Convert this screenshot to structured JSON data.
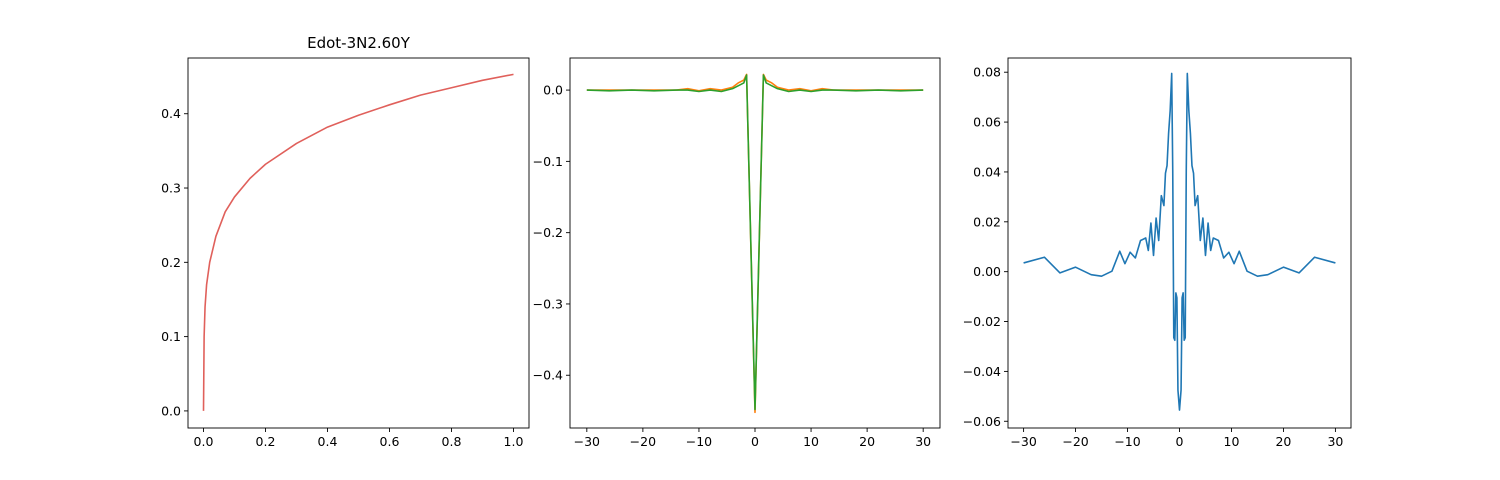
{
  "chart_data": [
    {
      "type": "line",
      "title": "Edot-3N2.60Y",
      "xlabel": "",
      "ylabel": "",
      "xlim": [
        -0.05,
        1.05
      ],
      "ylim": [
        -0.023,
        0.475
      ],
      "xticks": [
        "0.0",
        "0.2",
        "0.4",
        "0.6",
        "0.8",
        "1.0"
      ],
      "yticks": [
        "0.0",
        "0.1",
        "0.2",
        "0.3",
        "0.4"
      ],
      "grid": false,
      "series": [
        {
          "color": "#e0605b",
          "x": [
            0,
            0.002,
            0.005,
            0.01,
            0.02,
            0.04,
            0.07,
            0.1,
            0.15,
            0.2,
            0.3,
            0.4,
            0.5,
            0.6,
            0.7,
            0.8,
            0.9,
            1.0
          ],
          "y": [
            0.0,
            0.1,
            0.14,
            0.17,
            0.2,
            0.235,
            0.268,
            0.288,
            0.313,
            0.332,
            0.36,
            0.382,
            0.398,
            0.412,
            0.425,
            0.435,
            0.445,
            0.453
          ]
        }
      ]
    },
    {
      "type": "line",
      "title": "",
      "xlabel": "",
      "ylabel": "",
      "xlim": [
        -33,
        33
      ],
      "ylim": [
        -0.474,
        0.045
      ],
      "xticks": [
        "−30",
        "−20",
        "−10",
        "0",
        "10",
        "20",
        "30"
      ],
      "yticks": [
        "0.0",
        "−0.1",
        "−0.2",
        "−0.3",
        "−0.4"
      ],
      "grid": false,
      "series": [
        {
          "color": "#ff7f0e",
          "x": [
            -30,
            -26,
            -22,
            -18,
            -14,
            -12,
            -10,
            -8,
            -6,
            -4,
            -3,
            -2,
            -1.5,
            0,
            1.5,
            2,
            3,
            4,
            6,
            8,
            10,
            12,
            14,
            18,
            22,
            26,
            30
          ],
          "y": [
            0.0,
            0.0,
            0.0,
            0.0,
            0.0,
            0.002,
            -0.001,
            0.002,
            0.0,
            0.004,
            0.01,
            0.014,
            0.022,
            -0.452,
            0.022,
            0.014,
            0.01,
            0.004,
            0.0,
            0.002,
            -0.001,
            0.002,
            0.0,
            0.0,
            0.0,
            0.0,
            0.0
          ]
        },
        {
          "color": "#2ca02c",
          "x": [
            -30,
            -26,
            -22,
            -18,
            -14,
            -12,
            -10,
            -8,
            -6,
            -4,
            -3,
            -2,
            -1.5,
            0,
            1.5,
            2,
            3,
            4,
            6,
            8,
            10,
            12,
            14,
            18,
            22,
            26,
            30
          ],
          "y": [
            0.0,
            -0.001,
            0.0,
            -0.001,
            0.0,
            0.0,
            -0.002,
            0.0,
            -0.002,
            0.002,
            0.006,
            0.01,
            0.021,
            -0.448,
            0.021,
            0.01,
            0.006,
            0.002,
            -0.002,
            0.0,
            -0.002,
            0.0,
            0.0,
            -0.001,
            0.0,
            -0.001,
            0.0
          ]
        }
      ]
    },
    {
      "type": "line",
      "title": "",
      "xlabel": "",
      "ylabel": "",
      "xlim": [
        -33,
        33
      ],
      "ylim": [
        -0.0627,
        0.0857
      ],
      "xticks": [
        "−30",
        "−20",
        "−10",
        "0",
        "10",
        "20",
        "30"
      ],
      "yticks": [
        "0.08",
        "0.06",
        "0.04",
        "0.02",
        "0.00",
        "−0.02",
        "−0.04",
        "−0.06"
      ],
      "grid": false,
      "series": [
        {
          "color": "#1f77b4",
          "x": [
            -30,
            -26,
            -23,
            -20,
            -17,
            -15,
            -13,
            -11.5,
            -10.5,
            -9.5,
            -8.5,
            -7.5,
            -6.5,
            -6,
            -5.5,
            -5,
            -4.5,
            -4,
            -3.5,
            -3,
            -2.7,
            -2.4,
            -2.1,
            -1.8,
            -1.5,
            -1.3,
            -1.1,
            -0.9,
            -0.7,
            -0.5,
            -0.3,
            0,
            0.3,
            0.5,
            0.7,
            0.9,
            1.1,
            1.3,
            1.5,
            1.8,
            2.1,
            2.4,
            2.7,
            3,
            3.5,
            4,
            4.5,
            5,
            5.5,
            6,
            6.5,
            7.5,
            8.5,
            9.5,
            10.5,
            11.5,
            13,
            15,
            17,
            20,
            23,
            26,
            30
          ],
          "y": [
            0.0035,
            0.0058,
            -0.0005,
            0.0018,
            -0.0012,
            -0.0018,
            0.0002,
            0.0082,
            0.0032,
            0.0078,
            0.0055,
            0.0125,
            0.0135,
            0.0085,
            0.0195,
            0.0065,
            0.0215,
            0.0125,
            0.0305,
            0.0265,
            0.0395,
            0.0425,
            0.0555,
            0.0645,
            0.0795,
            0.0405,
            -0.0265,
            -0.0275,
            -0.0085,
            -0.0105,
            -0.0475,
            -0.0555,
            -0.0475,
            -0.0105,
            -0.0085,
            -0.0275,
            -0.0265,
            0.0405,
            0.0795,
            0.0645,
            0.0555,
            0.0425,
            0.0395,
            0.0265,
            0.0305,
            0.0125,
            0.0215,
            0.0065,
            0.0195,
            0.0085,
            0.0135,
            0.0125,
            0.0055,
            0.0078,
            0.0032,
            0.0082,
            0.0002,
            -0.0018,
            -0.0012,
            0.0018,
            -0.0005,
            0.0058,
            0.0035
          ]
        }
      ]
    }
  ]
}
